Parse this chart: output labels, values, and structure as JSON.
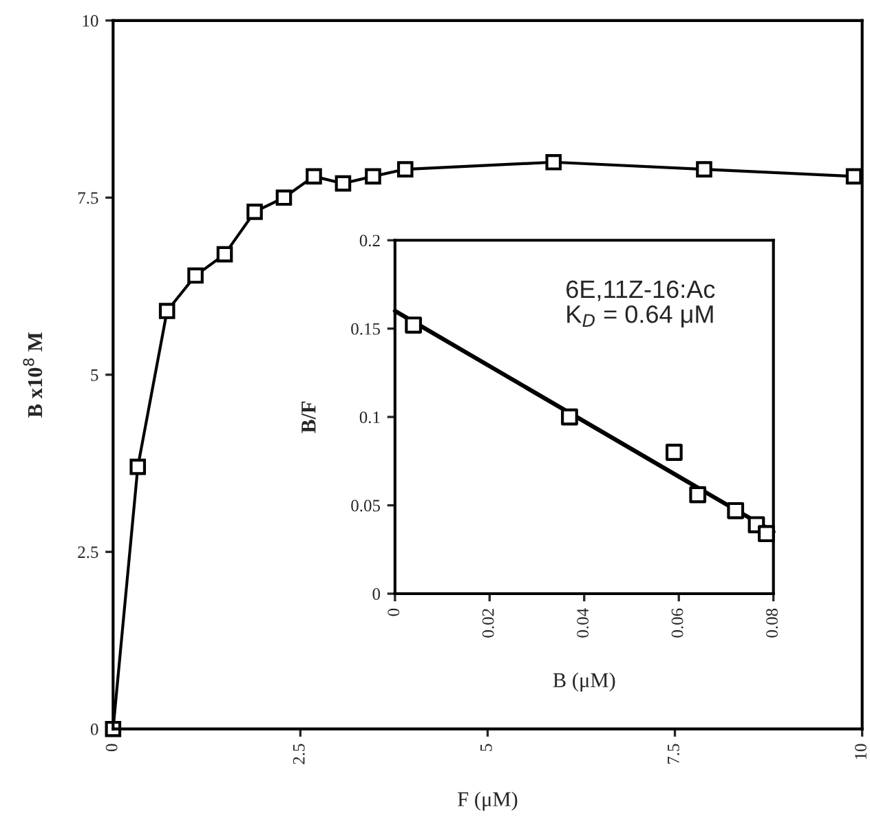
{
  "chart_data": [
    {
      "type": "line",
      "xlabel": "F (μM)",
      "ylabel": "B x10$^{8}$ M",
      "marker": "square",
      "line_style": "solid",
      "grid": false,
      "legend": false,
      "x": [
        0,
        0.33,
        0.72,
        1.1,
        1.49,
        1.89,
        2.28,
        2.68,
        3.07,
        3.47,
        3.9,
        5.88,
        7.89,
        9.89
      ],
      "series": [
        {
          "color": "#000000",
          "values": [
            0,
            3.7,
            5.9,
            6.4,
            6.7,
            7.3,
            7.5,
            7.8,
            7.7,
            7.8,
            7.9,
            8.0,
            7.9,
            7.8
          ]
        }
      ],
      "xlim": [
        0,
        10
      ],
      "ylim": [
        0,
        10
      ],
      "xticks": [
        0,
        2.5,
        5,
        7.5,
        10
      ],
      "yticks": [
        0,
        2.5,
        5,
        7.5,
        10
      ]
    },
    {
      "type": "scatter",
      "xlabel": "B (μM)",
      "ylabel": "B/F",
      "grid": false,
      "legend": false,
      "annotations": [
        "6E,11Z-16:Ac\nK$_{D}$ = 0.64 μM"
      ],
      "series": [
        {
          "type": "scatter",
          "marker": "square",
          "color": "#000000",
          "x": [
            0.0039,
            0.0369,
            0.059,
            0.064,
            0.072,
            0.0764,
            0.0785
          ],
          "values": [
            0.152,
            0.1,
            0.08,
            0.056,
            0.047,
            0.039,
            0.034
          ]
        },
        {
          "type": "line",
          "marker": "none",
          "color": "#000000",
          "x": [
            0,
            0.08
          ],
          "values": [
            0.16,
            0.035
          ]
        }
      ],
      "xlim": [
        0,
        0.08
      ],
      "ylim": [
        0,
        0.2
      ],
      "xticks": [
        0,
        0.02,
        0.04,
        0.06,
        0.08
      ],
      "yticks": [
        0,
        0.05,
        0.1,
        0.15,
        0.2
      ]
    }
  ]
}
